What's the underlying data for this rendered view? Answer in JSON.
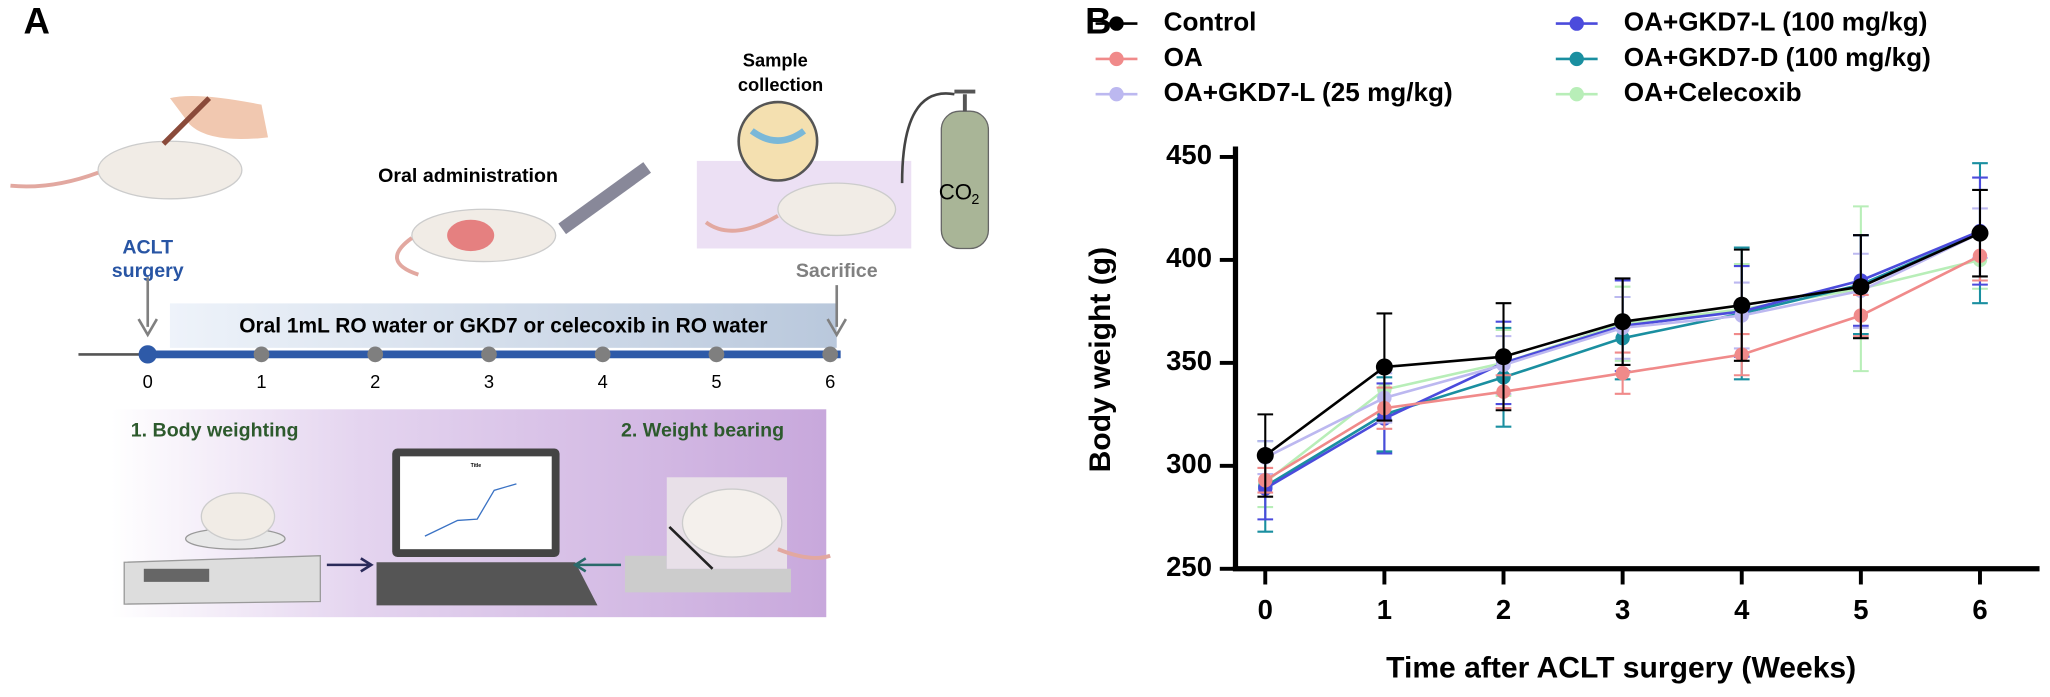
{
  "panel_a": {
    "label": "A",
    "surgery": [
      "ACLT",
      "surgery"
    ],
    "oral_admin": "Oral administration",
    "sample": [
      "Sample",
      "collection"
    ],
    "co2": {
      "text": "CO",
      "sub": "2"
    },
    "sacrifice": "Sacrifice",
    "banner": "Oral 1mL RO water or GKD7 or celecoxib in RO water",
    "timeline": [
      0,
      1,
      2,
      3,
      4,
      5,
      6
    ],
    "step1": "1.  Body weighting",
    "step2": "2. Weight bearing",
    "screen_title": "Title"
  },
  "chart_data": {
    "type": "line",
    "label": "B",
    "xlabel": "Time after ACLT  surgery (Weeks)",
    "ylabel": "Body weight (g)",
    "x": [
      0,
      1,
      2,
      3,
      4,
      5,
      6
    ],
    "xlim": [
      -0.25,
      6.5
    ],
    "xticks": [
      0,
      1,
      2,
      3,
      4,
      5,
      6
    ],
    "ylim": [
      250,
      450
    ],
    "yticks": [
      250,
      300,
      350,
      400,
      450
    ],
    "series": [
      {
        "name": "Control",
        "color": "#000000",
        "values": [
          305,
          348,
          353,
          370,
          378,
          387,
          413
        ],
        "errors": [
          20,
          26,
          26,
          21,
          27,
          25,
          21
        ]
      },
      {
        "name": "OA",
        "color": "#f08a8a",
        "values": [
          293,
          328,
          336,
          345,
          354,
          373,
          402
        ],
        "errors": [
          6,
          10,
          8,
          10,
          10,
          10,
          12
        ]
      },
      {
        "name": "OA+GKD7-L (25 mg/kg)",
        "color": "#bcb8f0",
        "values": [
          304,
          333,
          349,
          367,
          373,
          385,
          413
        ],
        "errors": [
          8,
          12,
          14,
          15,
          16,
          18,
          12
        ]
      },
      {
        "name": "OA+GKD7-L (100 mg/kg)",
        "color": "#4b4bdc",
        "values": [
          289,
          323,
          350,
          368,
          375,
          390,
          414
        ],
        "errors": [
          15,
          17,
          20,
          22,
          22,
          22,
          26
        ]
      },
      {
        "name": "OA+GKD7-D (100 mg/kg)",
        "color": "#1a8fa0",
        "values": [
          290,
          325,
          343,
          362,
          374,
          388,
          413
        ],
        "errors": [
          22,
          18,
          24,
          20,
          32,
          24,
          34
        ]
      },
      {
        "name": "OA+Celecoxib",
        "color": "#b8eeb8",
        "values": [
          292,
          337,
          350,
          369,
          376,
          386,
          400
        ],
        "errors": [
          12,
          12,
          16,
          18,
          22,
          40,
          14
        ]
      }
    ]
  }
}
